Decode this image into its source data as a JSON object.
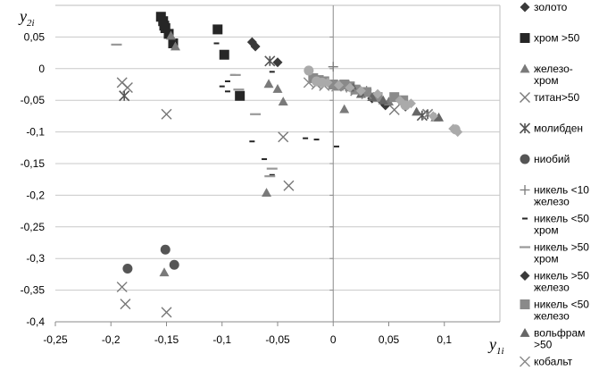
{
  "chart_data": {
    "type": "scatter",
    "xlabel": "y",
    "xlabel_sub": "1i",
    "ylabel": "y",
    "ylabel_sub": "2i",
    "xlim": [
      -0.25,
      0.15
    ],
    "ylim": [
      -0.4,
      0.1
    ],
    "x_ticks": [
      -0.25,
      -0.2,
      -0.15,
      -0.1,
      -0.05,
      0,
      0.05,
      0.1
    ],
    "x_tick_labels": [
      "-0,25",
      "-0,2",
      "-0,15",
      "-0,1",
      "-0,05",
      "0",
      "0,05",
      "0,1"
    ],
    "y_ticks": [
      -0.4,
      -0.35,
      -0.3,
      -0.25,
      -0.2,
      -0.15,
      -0.1,
      -0.05,
      0,
      0.05
    ],
    "y_tick_labels": [
      "-0,4",
      "-0,35",
      "-0,3",
      "-0,25",
      "-0,2",
      "-0,15",
      "-0,1",
      "-0,05",
      "0",
      "0,05"
    ],
    "grid": "horizontal",
    "legend_position": "right",
    "series": [
      {
        "name": "золото",
        "marker": "diamond",
        "color": "#3a3a3a",
        "points": [
          [
            -0.073,
            0.042
          ],
          [
            -0.07,
            0.035
          ],
          [
            0.047,
            -0.058
          ],
          [
            0.065,
            -0.06
          ]
        ]
      },
      {
        "name": "хром >50",
        "marker": "square",
        "color": "#262626",
        "points": [
          [
            -0.155,
            0.082
          ],
          [
            -0.153,
            0.075
          ],
          [
            -0.152,
            0.068
          ],
          [
            -0.151,
            0.064
          ],
          [
            -0.148,
            0.055
          ],
          [
            -0.144,
            0.04
          ],
          [
            -0.104,
            0.062
          ],
          [
            -0.098,
            0.022
          ],
          [
            -0.084,
            -0.043
          ]
        ]
      },
      {
        "name": "железо-\nхром",
        "marker": "triangle",
        "color": "#7a7a7a",
        "points": [
          [
            -0.146,
            0.052
          ],
          [
            -0.142,
            0.035
          ],
          [
            -0.058,
            -0.024
          ],
          [
            -0.05,
            -0.032
          ],
          [
            -0.045,
            -0.052
          ],
          [
            -0.06,
            -0.196
          ],
          [
            -0.152,
            -0.322
          ],
          [
            0.01,
            -0.064
          ],
          [
            0.05,
            -0.052
          ],
          [
            0.092,
            -0.077
          ]
        ]
      },
      {
        "name": "титан>50",
        "marker": "x",
        "color": "#777777",
        "points": [
          [
            -0.19,
            -0.022
          ],
          [
            -0.185,
            -0.03
          ],
          [
            -0.15,
            -0.072
          ],
          [
            -0.045,
            -0.108
          ],
          [
            -0.04,
            -0.185
          ],
          [
            -0.19,
            -0.345
          ],
          [
            -0.187,
            -0.372
          ],
          [
            -0.15,
            -0.385
          ],
          [
            0.055,
            -0.065
          ]
        ]
      },
      {
        "name": "молибден",
        "marker": "asterisk",
        "color": "#555555",
        "points": [
          [
            -0.057,
            0.012
          ],
          [
            -0.188,
            -0.043
          ],
          [
            0.08,
            -0.074
          ],
          [
            0.085,
            -0.072
          ]
        ]
      },
      {
        "name": "ниобий",
        "marker": "circle",
        "color": "#555555",
        "points": [
          [
            -0.151,
            -0.286
          ],
          [
            -0.143,
            -0.31
          ],
          [
            -0.185,
            -0.316
          ]
        ]
      },
      {
        "name": "никель <10\nжелезо",
        "marker": "plus",
        "color": "#7a7a7a",
        "points": [
          [
            0,
            0.003
          ],
          [
            -0.005,
            -0.02
          ],
          [
            0.012,
            -0.03
          ],
          [
            0.03,
            -0.035
          ]
        ]
      },
      {
        "name": "никель <50\nхром",
        "marker": "dash-short",
        "color": "#262626",
        "points": [
          [
            -0.105,
            0.04
          ],
          [
            -0.09,
            -0.01
          ],
          [
            -0.095,
            -0.02
          ],
          [
            -0.1,
            -0.028
          ],
          [
            -0.095,
            -0.036
          ],
          [
            -0.073,
            -0.115
          ],
          [
            -0.062,
            -0.143
          ],
          [
            -0.055,
            -0.168
          ],
          [
            -0.025,
            -0.11
          ],
          [
            -0.015,
            -0.112
          ],
          [
            0.003,
            -0.123
          ],
          [
            -0.055,
            -0.005
          ]
        ]
      },
      {
        "name": "никель >50\nхром",
        "marker": "dash-long",
        "color": "#999999",
        "points": [
          [
            -0.195,
            0.038
          ],
          [
            -0.088,
            -0.01
          ],
          [
            -0.085,
            -0.033
          ],
          [
            -0.07,
            -0.072
          ],
          [
            -0.055,
            -0.158
          ],
          [
            -0.057,
            -0.17
          ],
          [
            0.01,
            -0.02
          ],
          [
            0.02,
            -0.028
          ]
        ]
      },
      {
        "name": "никель >50\nжелезо",
        "marker": "diamond",
        "color": "#3a3a3a",
        "points": [
          [
            -0.05,
            0.01
          ],
          [
            0.035,
            -0.047
          ],
          [
            0.043,
            -0.05
          ]
        ]
      },
      {
        "name": "никель <50\nжелезо",
        "marker": "square",
        "color": "#8a8a8a",
        "points": [
          [
            -0.018,
            -0.015
          ],
          [
            -0.013,
            -0.018
          ],
          [
            -0.008,
            -0.02
          ],
          [
            0,
            -0.025
          ],
          [
            0.005,
            -0.027
          ],
          [
            0.01,
            -0.025
          ],
          [
            0.015,
            -0.028
          ],
          [
            0.02,
            -0.033
          ],
          [
            0.03,
            -0.037
          ],
          [
            0.04,
            -0.045
          ],
          [
            0.055,
            -0.045
          ],
          [
            0.063,
            -0.05
          ]
        ]
      },
      {
        "name": "вольфрам\n>50",
        "marker": "triangle",
        "color": "#666666",
        "points": [
          [
            0.018,
            -0.03
          ],
          [
            0.025,
            -0.04
          ],
          [
            0.035,
            -0.045
          ],
          [
            0.045,
            -0.05
          ],
          [
            0.075,
            -0.068
          ],
          [
            0.095,
            -0.077
          ]
        ]
      },
      {
        "name": "кобальт",
        "marker": "x",
        "color": "#888888",
        "points": [
          [
            -0.022,
            -0.022
          ],
          [
            -0.015,
            -0.025
          ],
          [
            -0.008,
            -0.027
          ],
          [
            0.003,
            -0.028
          ],
          [
            0.02,
            -0.035
          ],
          [
            0.03,
            -0.04
          ],
          [
            0.085,
            -0.072
          ]
        ]
      },
      {
        "name": "",
        "marker": "circle",
        "color": "#aaaaaa",
        "legend": false,
        "points": [
          [
            -0.022,
            -0.003
          ],
          [
            -0.015,
            -0.02
          ],
          [
            -0.01,
            -0.022
          ],
          [
            0.065,
            -0.058
          ],
          [
            0.11,
            -0.096
          ]
        ]
      },
      {
        "name": "",
        "marker": "diamond",
        "color": "#aaaaaa",
        "legend": false,
        "points": [
          [
            -0.005,
            -0.022
          ],
          [
            0.005,
            -0.026
          ],
          [
            0.015,
            -0.03
          ],
          [
            0.025,
            -0.035
          ],
          [
            0.04,
            -0.04
          ],
          [
            0.06,
            -0.05
          ],
          [
            0.07,
            -0.055
          ],
          [
            0.09,
            -0.075
          ],
          [
            0.108,
            -0.095
          ],
          [
            0.112,
            -0.1
          ]
        ]
      }
    ]
  }
}
